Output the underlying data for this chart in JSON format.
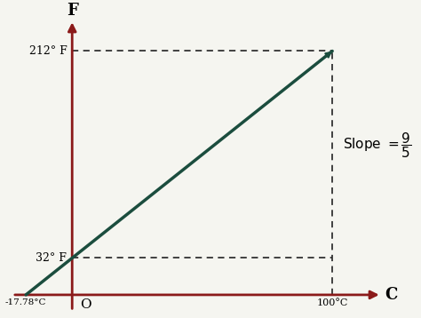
{
  "background_color": "#f5f5f0",
  "axis_color": "#8B1A1A",
  "line_color": "#1B4D3E",
  "dashed_color": "#333333",
  "label_32F": "32° F",
  "label_212F": "212° F",
  "label_neg1778": "-17.78°C",
  "label_100C": "100°C",
  "label_O": "O",
  "label_F": "F",
  "label_C": "C",
  "slope_label": "Slope = $\\frac{9}{5}$",
  "fig_width": 4.74,
  "fig_height": 3.58,
  "dpi": 100
}
